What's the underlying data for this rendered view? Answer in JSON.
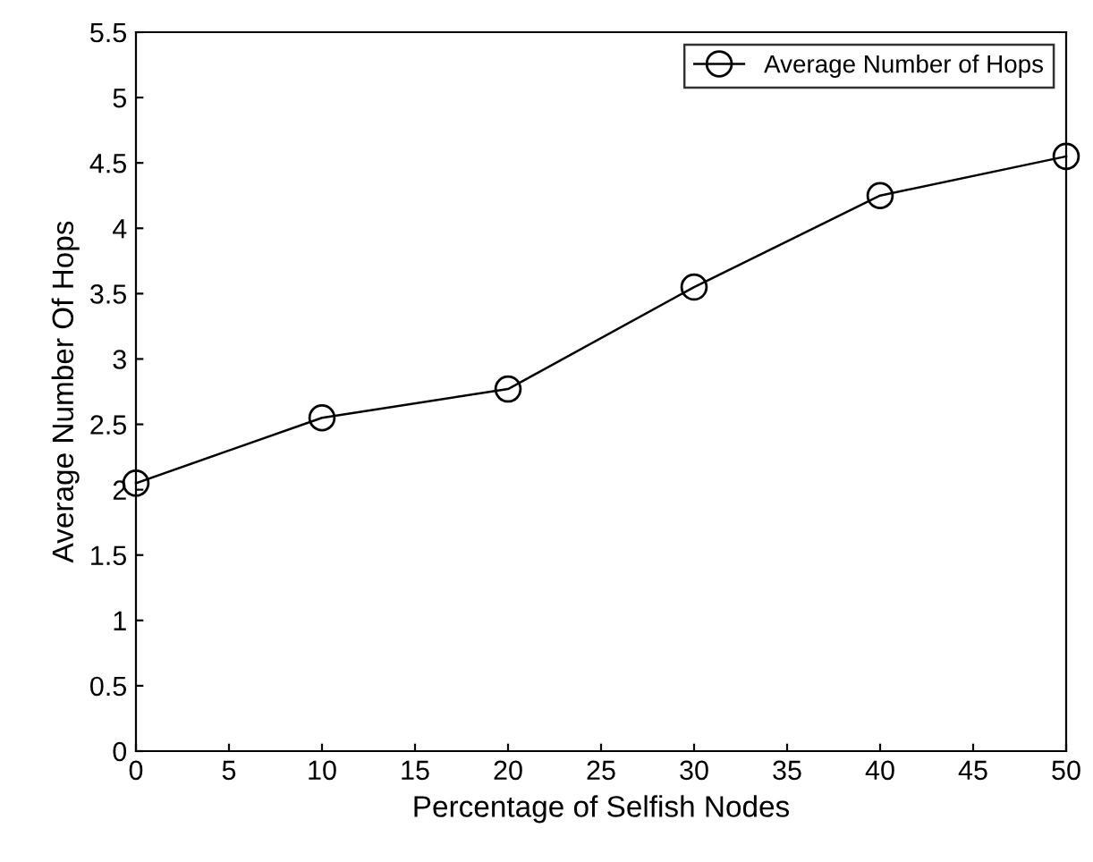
{
  "chart_data": {
    "type": "line",
    "xlabel": "Percentage of Selfish Nodes",
    "ylabel": "Average Number Of Hops",
    "x": [
      0,
      10,
      20,
      30,
      40,
      50
    ],
    "series": [
      {
        "name": "Average Number of Hops",
        "color": "#000000",
        "values": [
          2.05,
          2.55,
          2.77,
          3.55,
          4.25,
          4.55
        ]
      }
    ],
    "xlim": [
      0,
      50
    ],
    "xticks": [
      0,
      5,
      10,
      15,
      20,
      25,
      30,
      35,
      40,
      45,
      50
    ],
    "ylim": [
      0,
      5.5
    ],
    "yticks": [
      0,
      0.5,
      1,
      1.5,
      2,
      2.5,
      3,
      3.5,
      4,
      4.5,
      5,
      5.5
    ],
    "marker": "circle",
    "line_style": "solid",
    "legend": "top right",
    "grid": false
  }
}
